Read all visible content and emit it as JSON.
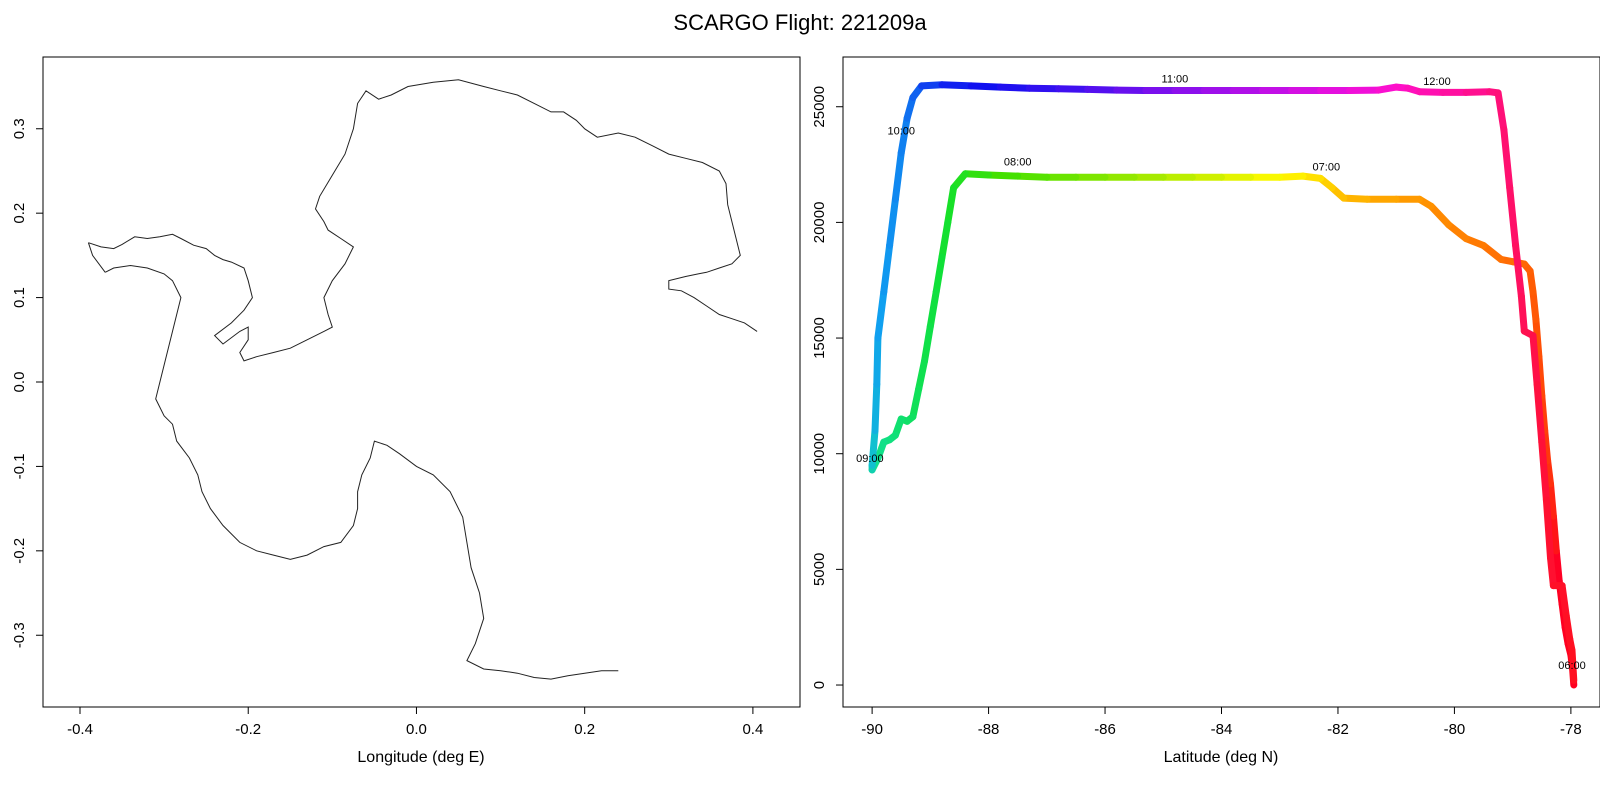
{
  "title": "SCARGO Flight: 221209a",
  "chart_data": [
    {
      "type": "map",
      "xlabel": "Longitude (deg E)",
      "ylabel": "",
      "xlim": [
        -0.444,
        0.456
      ],
      "ylim": [
        -0.385,
        0.385
      ],
      "xticks": [
        "-0.4",
        "-0.2",
        "0.0",
        "0.2",
        "0.4"
      ],
      "yticks": [
        "-0.3",
        "-0.2",
        "-0.1",
        "0.0",
        "0.1",
        "0.2",
        "0.3"
      ],
      "outline_color": "#222222",
      "outline": [
        [
          -0.39,
          0.165
        ],
        [
          -0.375,
          0.16
        ],
        [
          -0.36,
          0.158
        ],
        [
          -0.35,
          0.163
        ],
        [
          -0.335,
          0.172
        ],
        [
          -0.32,
          0.17
        ],
        [
          -0.305,
          0.172
        ],
        [
          -0.29,
          0.175
        ],
        [
          -0.28,
          0.17
        ],
        [
          -0.265,
          0.162
        ],
        [
          -0.25,
          0.158
        ],
        [
          -0.24,
          0.15
        ],
        [
          -0.23,
          0.145
        ],
        [
          -0.22,
          0.142
        ],
        [
          -0.205,
          0.135
        ],
        [
          -0.2,
          0.12
        ],
        [
          -0.195,
          0.1
        ],
        [
          -0.205,
          0.085
        ],
        [
          -0.22,
          0.07
        ],
        [
          -0.24,
          0.055
        ],
        [
          -0.23,
          0.045
        ],
        [
          -0.21,
          0.06
        ],
        [
          -0.2,
          0.065
        ],
        [
          -0.2,
          0.05
        ],
        [
          -0.21,
          0.035
        ],
        [
          -0.205,
          0.025
        ],
        [
          -0.19,
          0.03
        ],
        [
          -0.17,
          0.035
        ],
        [
          -0.15,
          0.04
        ],
        [
          -0.13,
          0.05
        ],
        [
          -0.11,
          0.06
        ],
        [
          -0.1,
          0.065
        ],
        [
          -0.105,
          0.08
        ],
        [
          -0.11,
          0.1
        ],
        [
          -0.1,
          0.12
        ],
        [
          -0.085,
          0.14
        ],
        [
          -0.075,
          0.16
        ],
        [
          -0.09,
          0.17
        ],
        [
          -0.105,
          0.18
        ],
        [
          -0.11,
          0.19
        ],
        [
          -0.12,
          0.205
        ],
        [
          -0.115,
          0.22
        ],
        [
          -0.1,
          0.245
        ],
        [
          -0.085,
          0.27
        ],
        [
          -0.075,
          0.3
        ],
        [
          -0.07,
          0.33
        ],
        [
          -0.06,
          0.345
        ],
        [
          -0.045,
          0.335
        ],
        [
          -0.03,
          0.34
        ],
        [
          -0.01,
          0.35
        ],
        [
          0.02,
          0.355
        ],
        [
          0.05,
          0.358
        ],
        [
          0.08,
          0.35
        ],
        [
          0.1,
          0.345
        ],
        [
          0.12,
          0.34
        ],
        [
          0.14,
          0.33
        ],
        [
          0.16,
          0.32
        ],
        [
          0.175,
          0.32
        ],
        [
          0.19,
          0.31
        ],
        [
          0.2,
          0.3
        ],
        [
          0.215,
          0.29
        ],
        [
          0.24,
          0.295
        ],
        [
          0.26,
          0.29
        ],
        [
          0.28,
          0.28
        ],
        [
          0.3,
          0.27
        ],
        [
          0.32,
          0.265
        ],
        [
          0.34,
          0.26
        ],
        [
          0.36,
          0.25
        ],
        [
          0.368,
          0.235
        ],
        [
          0.37,
          0.21
        ],
        [
          0.375,
          0.19
        ],
        [
          0.38,
          0.17
        ],
        [
          0.385,
          0.15
        ],
        [
          0.375,
          0.14
        ],
        [
          0.36,
          0.135
        ],
        [
          0.345,
          0.13
        ],
        [
          0.335,
          0.128
        ],
        [
          0.32,
          0.125
        ],
        [
          0.3,
          0.12
        ],
        [
          0.3,
          0.11
        ],
        [
          0.315,
          0.108
        ],
        [
          0.33,
          0.1
        ],
        [
          0.345,
          0.09
        ],
        [
          0.36,
          0.08
        ],
        [
          0.375,
          0.075
        ],
        [
          0.39,
          0.07
        ],
        [
          0.405,
          0.06
        ]
      ],
      "outline2": [
        [
          -0.37,
          0.13
        ],
        [
          -0.36,
          0.135
        ],
        [
          -0.34,
          0.138
        ],
        [
          -0.32,
          0.135
        ],
        [
          -0.3,
          0.128
        ],
        [
          -0.29,
          0.12
        ],
        [
          -0.28,
          0.1
        ],
        [
          -0.285,
          0.08
        ],
        [
          -0.29,
          0.06
        ],
        [
          -0.295,
          0.04
        ],
        [
          -0.3,
          0.02
        ],
        [
          -0.305,
          0.0
        ],
        [
          -0.31,
          -0.02
        ],
        [
          -0.3,
          -0.04
        ],
        [
          -0.29,
          -0.05
        ],
        [
          -0.285,
          -0.07
        ],
        [
          -0.27,
          -0.09
        ],
        [
          -0.26,
          -0.11
        ],
        [
          -0.255,
          -0.13
        ],
        [
          -0.245,
          -0.15
        ],
        [
          -0.23,
          -0.17
        ],
        [
          -0.21,
          -0.19
        ],
        [
          -0.19,
          -0.2
        ],
        [
          -0.17,
          -0.205
        ],
        [
          -0.15,
          -0.21
        ],
        [
          -0.13,
          -0.205
        ],
        [
          -0.11,
          -0.195
        ],
        [
          -0.09,
          -0.19
        ],
        [
          -0.075,
          -0.17
        ],
        [
          -0.07,
          -0.15
        ],
        [
          -0.07,
          -0.13
        ],
        [
          -0.065,
          -0.11
        ],
        [
          -0.055,
          -0.09
        ],
        [
          -0.05,
          -0.07
        ],
        [
          -0.035,
          -0.075
        ],
        [
          -0.02,
          -0.085
        ],
        [
          0.0,
          -0.1
        ],
        [
          0.02,
          -0.11
        ],
        [
          0.04,
          -0.13
        ],
        [
          0.055,
          -0.16
        ],
        [
          0.06,
          -0.19
        ],
        [
          0.065,
          -0.22
        ],
        [
          0.075,
          -0.25
        ],
        [
          0.08,
          -0.28
        ],
        [
          0.07,
          -0.31
        ],
        [
          0.06,
          -0.33
        ],
        [
          0.08,
          -0.34
        ],
        [
          0.1,
          -0.342
        ],
        [
          0.12,
          -0.345
        ],
        [
          0.14,
          -0.35
        ],
        [
          0.16,
          -0.352
        ],
        [
          0.18,
          -0.348
        ],
        [
          0.2,
          -0.345
        ],
        [
          0.22,
          -0.342
        ],
        [
          0.24,
          -0.342
        ]
      ],
      "outline3": [
        [
          -0.39,
          0.165
        ],
        [
          -0.385,
          0.15
        ],
        [
          -0.37,
          0.13
        ]
      ]
    },
    {
      "type": "scatter",
      "xlabel": "Latitude (deg N)",
      "ylabel": "",
      "xlim": [
        -90.5,
        -77.5
      ],
      "ylim": [
        -950,
        27150
      ],
      "xticks": [
        -90,
        -88,
        -86,
        -84,
        -82,
        -80,
        -78
      ],
      "yticks": [
        0,
        5000,
        10000,
        15000,
        20000,
        25000
      ],
      "series": [
        {
          "points": [
            [
              -77.95,
              0,
              "#ff0020"
            ],
            [
              -77.97,
              700,
              "#ff0020"
            ],
            [
              -78.0,
              1300,
              "#ff0020"
            ],
            [
              -78.05,
              1800,
              "#ff0020"
            ],
            [
              -78.1,
              2500,
              "#ff0022"
            ],
            [
              -78.15,
              3500,
              "#ff0022"
            ],
            [
              -78.2,
              4500,
              "#ff0024"
            ],
            [
              -78.25,
              5800,
              "#ff1418"
            ],
            [
              -78.3,
              7300,
              "#ff2412"
            ],
            [
              -78.35,
              8700,
              "#ff300e"
            ],
            [
              -78.4,
              9700,
              "#ff380c"
            ],
            [
              -78.45,
              11000,
              "#ff400a"
            ],
            [
              -78.5,
              12500,
              "#ff4808"
            ],
            [
              -78.55,
              14200,
              "#ff5006"
            ],
            [
              -78.6,
              15800,
              "#ff5806"
            ],
            [
              -78.65,
              17000,
              "#ff5c04"
            ],
            [
              -78.7,
              17900,
              "#ff6004"
            ],
            [
              -78.8,
              18200,
              "#ff6604"
            ],
            [
              -79.0,
              18300,
              "#ff6c04"
            ],
            [
              -79.2,
              18400,
              "#ff7204"
            ],
            [
              -79.5,
              19000,
              "#ff7a02"
            ],
            [
              -79.8,
              19300,
              "#ff8202"
            ],
            [
              -80.1,
              19900,
              "#ff8a02"
            ],
            [
              -80.4,
              20700,
              "#ff9200"
            ],
            [
              -80.6,
              21000,
              "#ff9a00"
            ],
            [
              -81.0,
              21000,
              "#ffa600"
            ],
            [
              -81.5,
              21000,
              "#ffb400"
            ],
            [
              -81.9,
              21050,
              "#ffc000"
            ],
            [
              -82.1,
              21500,
              "#ffd000"
            ],
            [
              -82.3,
              21900,
              "#ffe000"
            ],
            [
              -82.6,
              22000,
              "#fff000"
            ],
            [
              -83.0,
              21950,
              "#f8f800"
            ],
            [
              -83.5,
              21950,
              "#e4f400"
            ],
            [
              -84.0,
              21950,
              "#cff000"
            ],
            [
              -84.5,
              21950,
              "#bbee00"
            ],
            [
              -85.0,
              21950,
              "#a6ea00"
            ],
            [
              -85.5,
              21950,
              "#92e800"
            ],
            [
              -86.0,
              21950,
              "#7ee600"
            ],
            [
              -86.5,
              21950,
              "#6ae400"
            ],
            [
              -87.0,
              21950,
              "#56e200"
            ],
            [
              -87.5,
              22000,
              "#44e000"
            ],
            [
              -88.0,
              22050,
              "#32e010"
            ],
            [
              -88.4,
              22100,
              "#22e020"
            ],
            [
              -88.6,
              21500,
              "#18e028"
            ],
            [
              -88.7,
              20000,
              "#14e030"
            ],
            [
              -88.8,
              18500,
              "#10e038"
            ],
            [
              -88.9,
              17000,
              "#10e040"
            ],
            [
              -89.0,
              15500,
              "#10e048"
            ],
            [
              -89.1,
              14000,
              "#10e050"
            ],
            [
              -89.2,
              12800,
              "#10e058"
            ],
            [
              -89.3,
              11600,
              "#10e060"
            ],
            [
              -89.4,
              11400,
              "#10e068"
            ],
            [
              -89.5,
              11500,
              "#10e070"
            ],
            [
              -89.6,
              10800,
              "#10e078"
            ],
            [
              -89.7,
              10600,
              "#10e080"
            ],
            [
              -89.8,
              10500,
              "#10e088"
            ],
            [
              -89.9,
              9800,
              "#10e090"
            ],
            [
              -90.0,
              9300,
              "#10d0b0"
            ],
            [
              -90.0,
              9500,
              "#10c0d0"
            ],
            [
              -89.95,
              11000,
              "#10b0e0"
            ],
            [
              -89.92,
              13000,
              "#10a8e8"
            ],
            [
              -89.9,
              15000,
              "#10a0f0"
            ],
            [
              -89.8,
              17000,
              "#1098f0"
            ],
            [
              -89.7,
              19000,
              "#1090f0"
            ],
            [
              -89.6,
              21000,
              "#1088f0"
            ],
            [
              -89.5,
              23000,
              "#1080f0"
            ],
            [
              -89.4,
              24500,
              "#1070f0"
            ],
            [
              -89.3,
              25400,
              "#1060f0"
            ],
            [
              -89.15,
              25900,
              "#1040f0"
            ],
            [
              -88.8,
              25950,
              "#1020f0"
            ],
            [
              -88.3,
              25900,
              "#1010f0"
            ],
            [
              -87.8,
              25850,
              "#2010f0"
            ],
            [
              -87.3,
              25800,
              "#3010f0"
            ],
            [
              -86.8,
              25780,
              "#4010f0"
            ],
            [
              -86.3,
              25750,
              "#5410ef"
            ],
            [
              -85.8,
              25720,
              "#6810ee"
            ],
            [
              -85.3,
              25700,
              "#7a10ed"
            ],
            [
              -84.8,
              25700,
              "#8c10ec"
            ],
            [
              -84.3,
              25700,
              "#9e10ea"
            ],
            [
              -83.8,
              25700,
              "#b010e8"
            ],
            [
              -83.3,
              25700,
              "#c210e6"
            ],
            [
              -82.8,
              25700,
              "#d410e2"
            ],
            [
              -82.3,
              25700,
              "#e410de"
            ],
            [
              -81.8,
              25700,
              "#f010d8"
            ],
            [
              -81.3,
              25720,
              "#fa10d0"
            ],
            [
              -81.0,
              25850,
              "#ff10c8"
            ],
            [
              -80.8,
              25800,
              "#ff10bc"
            ],
            [
              -80.6,
              25650,
              "#ff10b0"
            ],
            [
              -80.2,
              25620,
              "#ff10a0"
            ],
            [
              -79.8,
              25620,
              "#ff1090"
            ],
            [
              -79.4,
              25650,
              "#ff1080"
            ],
            [
              -79.25,
              25600,
              "#ff1078"
            ],
            [
              -79.15,
              24000,
              "#ff1070"
            ],
            [
              -79.05,
              21500,
              "#ff1068"
            ],
            [
              -78.95,
              19000,
              "#ff1060"
            ],
            [
              -78.85,
              16800,
              "#ff1058"
            ],
            [
              -78.8,
              15300,
              "#ff1050"
            ],
            [
              -78.65,
              15100,
              "#ff1048"
            ],
            [
              -78.58,
              13000,
              "#ff1040"
            ],
            [
              -78.5,
              10500,
              "#ff1038"
            ],
            [
              -78.42,
              8000,
              "#ff1030"
            ],
            [
              -78.35,
              5500,
              "#ff1030"
            ],
            [
              -78.3,
              4300,
              "#ff1028"
            ],
            [
              -78.15,
              4300,
              "#ff1028"
            ],
            [
              -78.08,
              3000,
              "#ff1024"
            ],
            [
              -78.02,
              2000,
              "#ff1022"
            ],
            [
              -77.98,
              1500,
              "#ff1020"
            ],
            [
              -77.95,
              200,
              "#ff0020"
            ]
          ]
        }
      ],
      "annotations": [
        {
          "text": "06:00",
          "x": -77.95,
          "y": 700
        },
        {
          "text": "07:00",
          "x": -82.2,
          "y": 22250
        },
        {
          "text": "08:00",
          "x": -87.5,
          "y": 22450
        },
        {
          "text": "09:00",
          "x": -90.0,
          "y": 9650
        },
        {
          "text": "10:00",
          "x": -89.5,
          "y": 23800
        },
        {
          "text": "11:00",
          "x": -84.8,
          "y": 26050
        },
        {
          "text": "12:00",
          "x": -80.3,
          "y": 25950
        }
      ]
    }
  ]
}
